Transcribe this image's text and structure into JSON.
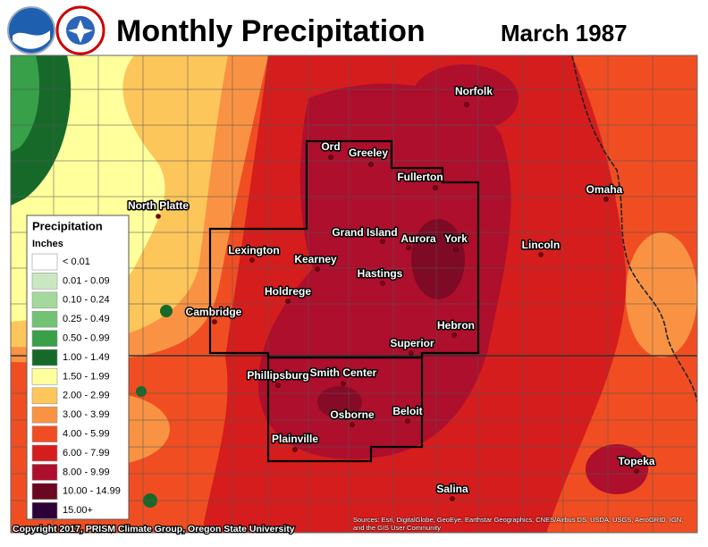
{
  "header": {
    "title": "Monthly Precipitation",
    "date": "March 1987",
    "logos": [
      "NOAA",
      "National Weather Service"
    ]
  },
  "legend": {
    "title": "Precipitation",
    "units": "Inches",
    "entries": [
      {
        "label": "< 0.01",
        "color": "#ffffff"
      },
      {
        "label": "0.01 - 0.09",
        "color": "#c9e8c2"
      },
      {
        "label": "0.10 - 0.24",
        "color": "#a3d99c"
      },
      {
        "label": "0.25 - 0.49",
        "color": "#72c274"
      },
      {
        "label": "0.50 - 0.99",
        "color": "#37a049"
      },
      {
        "label": "1.00 - 1.49",
        "color": "#17692a"
      },
      {
        "label": "1.50 - 1.99",
        "color": "#ffff9c"
      },
      {
        "label": "2.00 - 2.99",
        "color": "#fdc65a"
      },
      {
        "label": "3.00 - 3.99",
        "color": "#f99343"
      },
      {
        "label": "4.00 - 5.99",
        "color": "#f04e22"
      },
      {
        "label": "6.00 - 7.99",
        "color": "#d61d1d"
      },
      {
        "label": "8.00 - 9.99",
        "color": "#ad0f2d"
      },
      {
        "label": "10.00 - 14.99",
        "color": "#6a0822"
      },
      {
        "label": "15.00+",
        "color": "#2e003a"
      }
    ]
  },
  "cities": [
    "Norfolk",
    "Ord",
    "Greeley",
    "Fullerton",
    "North Platte",
    "Omaha",
    "Grand Island",
    "Aurora",
    "York",
    "Lincoln",
    "Lexington",
    "Kearney",
    "Hastings",
    "Holdrege",
    "Cambridge",
    "Hebron",
    "Superior",
    "Phillipsburg",
    "Smith Center",
    "Osborne",
    "Beloit",
    "Plainville",
    "Topeka",
    "Salina"
  ],
  "footer": {
    "copyright": "Copyright 2017, PRISM Climate Group, Oregon State University",
    "sources": "Sources: Esri, DigitalGlobe, GeoEye, Earthstar Geographics, CNES/Airbus DS, USDA, USGS, AeroGRID, IGN, and the GIS User Community"
  }
}
